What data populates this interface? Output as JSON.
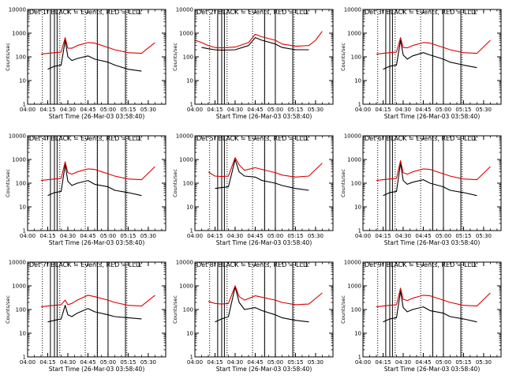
{
  "colors": {
    "events": "#000000",
    "lld": "#dd0000",
    "background": "#ffffff",
    "axis": "#000000"
  },
  "chart_data": [
    {
      "type": "line",
      "title": "Det 1f BLACK = Events, RED = LLD",
      "xlabel": "Start Time (26-Mar-03 03:58:40)",
      "ylabel": "Counts/sec",
      "x_tick_labels": [
        "04:00",
        "04:15",
        "04:30",
        "04:45",
        "05:00",
        "05:15",
        "05:30"
      ],
      "y_tick_labels": [
        "1",
        "10",
        "100",
        "1000",
        "10000"
      ],
      "ylim": [
        1,
        10000
      ],
      "yscale": "log",
      "corner_mark": "L",
      "x": [
        "04:10",
        "04:15",
        "04:20",
        "04:25",
        "04:28",
        "04:30",
        "04:33",
        "04:37",
        "04:45",
        "04:50",
        "05:00",
        "05:05",
        "05:15",
        "05:25",
        "05:35"
      ],
      "series": [
        {
          "name": "Events",
          "color": "#000000",
          "values": [
            null,
            30,
            40,
            45,
            500,
            100,
            70,
            85,
            110,
            80,
            60,
            45,
            30,
            25,
            null
          ]
        },
        {
          "name": "LLD",
          "color": "#dd0000",
          "values": [
            130,
            140,
            150,
            160,
            650,
            230,
            230,
            300,
            400,
            380,
            250,
            200,
            150,
            140,
            400
          ]
        }
      ],
      "vertical_lines_solid": [
        "04:17",
        "04:20",
        "04:22",
        "04:52",
        "05:00",
        "05:13"
      ],
      "vertical_lines_dotted": [
        "04:11",
        "04:24",
        "04:43",
        "04:52",
        "05:14"
      ]
    },
    {
      "type": "line",
      "title": "Det 2f BLACK = Events, RED = LLD",
      "xlabel": "Start Time (26-Mar-03 03:58:40)",
      "ylabel": "Counts/sec",
      "x_tick_labels": [
        "04:00",
        "04:15",
        "04:30",
        "04:45",
        "05:00",
        "05:15",
        "05:30"
      ],
      "y_tick_labels": [
        "1",
        "10",
        "100",
        "1000",
        "10000"
      ],
      "ylim": [
        1,
        10000
      ],
      "yscale": "log",
      "corner_mark": "L",
      "x": [
        "04:00",
        "04:05",
        "04:10",
        "04:15",
        "04:20",
        "04:30",
        "04:40",
        "04:45",
        "04:50",
        "05:00",
        "05:05",
        "05:15",
        "05:25",
        "05:30",
        "05:35"
      ],
      "series": [
        {
          "name": "Events",
          "color": "#000000",
          "values": [
            null,
            250,
            220,
            200,
            190,
            200,
            300,
            650,
            500,
            350,
            250,
            200,
            200,
            null,
            null
          ]
        },
        {
          "name": "LLD",
          "color": "#dd0000",
          "values": [
            500,
            400,
            300,
            250,
            240,
            260,
            400,
            900,
            700,
            500,
            350,
            280,
            300,
            500,
            1200
          ]
        }
      ],
      "vertical_lines_solid": [
        "04:17",
        "04:20",
        "04:22",
        "04:52",
        "05:00",
        "05:13"
      ],
      "vertical_lines_dotted": [
        "04:11",
        "04:24",
        "04:43",
        "04:52",
        "05:14"
      ]
    },
    {
      "type": "line",
      "title": "Det 3f BLACK = Events, RED = LLD",
      "xlabel": "Start Time (26-Mar-03 03:58:40)",
      "ylabel": "Counts/sec",
      "x_tick_labels": [
        "04:00",
        "04:15",
        "04:30",
        "04:45",
        "05:00",
        "05:15",
        "05:30"
      ],
      "y_tick_labels": [
        "1",
        "10",
        "100",
        "1000",
        "10000"
      ],
      "ylim": [
        1,
        10000
      ],
      "yscale": "log",
      "corner_mark": "L",
      "x": [
        "04:10",
        "04:15",
        "04:20",
        "04:25",
        "04:28",
        "04:30",
        "04:33",
        "04:37",
        "04:45",
        "04:50",
        "05:00",
        "05:05",
        "05:15",
        "05:25",
        "05:35"
      ],
      "series": [
        {
          "name": "Events",
          "color": "#000000",
          "values": [
            null,
            30,
            40,
            45,
            500,
            120,
            80,
            110,
            150,
            120,
            80,
            60,
            45,
            35,
            null
          ]
        },
        {
          "name": "LLD",
          "color": "#dd0000",
          "values": [
            130,
            140,
            150,
            160,
            650,
            250,
            240,
            300,
            400,
            380,
            250,
            200,
            150,
            140,
            500
          ]
        }
      ],
      "vertical_lines_solid": [
        "04:17",
        "04:20",
        "04:22",
        "04:52",
        "05:00",
        "05:13"
      ],
      "vertical_lines_dotted": [
        "04:11",
        "04:24",
        "04:43",
        "04:52",
        "05:14"
      ]
    },
    {
      "type": "line",
      "title": "Det 4f BLACK = Events, RED = LLD",
      "xlabel": "Start Time (26-Mar-03 03:58:40)",
      "ylabel": "Counts/sec",
      "x_tick_labels": [
        "04:00",
        "04:15",
        "04:30",
        "04:45",
        "05:00",
        "05:15",
        "05:30"
      ],
      "y_tick_labels": [
        "1",
        "10",
        "100",
        "1000",
        "10000"
      ],
      "ylim": [
        1,
        10000
      ],
      "yscale": "log",
      "corner_mark": "L",
      "x": [
        "04:10",
        "04:15",
        "04:20",
        "04:25",
        "04:28",
        "04:30",
        "04:33",
        "04:37",
        "04:45",
        "04:50",
        "05:00",
        "05:05",
        "05:15",
        "05:25",
        "05:35"
      ],
      "series": [
        {
          "name": "Events",
          "color": "#000000",
          "values": [
            null,
            30,
            40,
            45,
            600,
            120,
            80,
            100,
            130,
            90,
            70,
            50,
            40,
            30,
            null
          ]
        },
        {
          "name": "LLD",
          "color": "#dd0000",
          "values": [
            130,
            140,
            150,
            160,
            800,
            280,
            240,
            300,
            400,
            380,
            250,
            200,
            150,
            140,
            500
          ]
        }
      ],
      "vertical_lines_solid": [
        "04:17",
        "04:20",
        "04:22",
        "04:52",
        "05:00",
        "05:13"
      ],
      "vertical_lines_dotted": [
        "04:11",
        "04:24",
        "04:43",
        "04:52",
        "05:14"
      ]
    },
    {
      "type": "line",
      "title": "Det 5f BLACK = Events, RED = LLD",
      "xlabel": "Start Time (26-Mar-03 03:58:40)",
      "ylabel": "Counts/sec",
      "x_tick_labels": [
        "04:00",
        "04:15",
        "04:30",
        "04:45",
        "05:00",
        "05:15",
        "05:30"
      ],
      "y_tick_labels": [
        "1",
        "10",
        "100",
        "1000",
        "10000"
      ],
      "ylim": [
        1,
        10000
      ],
      "yscale": "log",
      "corner_mark": "L",
      "x": [
        "04:10",
        "04:15",
        "04:20",
        "04:25",
        "04:30",
        "04:33",
        "04:37",
        "04:45",
        "04:50",
        "05:00",
        "05:05",
        "05:15",
        "05:25",
        "05:35"
      ],
      "series": [
        {
          "name": "Events",
          "color": "#000000",
          "values": [
            null,
            60,
            65,
            70,
            1000,
            300,
            200,
            180,
            130,
            100,
            80,
            60,
            50,
            null
          ]
        },
        {
          "name": "LLD",
          "color": "#dd0000",
          "values": [
            300,
            200,
            190,
            200,
            1200,
            600,
            350,
            450,
            380,
            280,
            220,
            180,
            200,
            700
          ]
        }
      ],
      "vertical_lines_solid": [
        "04:17",
        "04:20",
        "04:22",
        "04:52",
        "05:00",
        "05:13"
      ],
      "vertical_lines_dotted": [
        "04:11",
        "04:24",
        "04:43",
        "04:52",
        "05:14"
      ]
    },
    {
      "type": "line",
      "title": "Det 6f BLACK = Events, RED = LLD",
      "xlabel": "Start Time (26-Mar-03 03:58:40)",
      "ylabel": "Counts/sec",
      "x_tick_labels": [
        "04:00",
        "04:15",
        "04:30",
        "04:45",
        "05:00",
        "05:15",
        "05:30"
      ],
      "y_tick_labels": [
        "1",
        "10",
        "100",
        "1000",
        "10000"
      ],
      "ylim": [
        1,
        10000
      ],
      "yscale": "log",
      "corner_mark": "L",
      "x": [
        "04:10",
        "04:15",
        "04:20",
        "04:25",
        "04:28",
        "04:30",
        "04:33",
        "04:37",
        "04:45",
        "04:50",
        "05:00",
        "05:05",
        "05:15",
        "05:25",
        "05:35"
      ],
      "series": [
        {
          "name": "Events",
          "color": "#000000",
          "values": [
            null,
            30,
            40,
            45,
            700,
            130,
            90,
            110,
            140,
            100,
            70,
            50,
            40,
            30,
            null
          ]
        },
        {
          "name": "LLD",
          "color": "#dd0000",
          "values": [
            130,
            140,
            150,
            160,
            900,
            280,
            240,
            300,
            400,
            380,
            250,
            200,
            150,
            140,
            500
          ]
        }
      ],
      "vertical_lines_solid": [
        "04:17",
        "04:20",
        "04:22",
        "04:52",
        "05:00",
        "05:13"
      ],
      "vertical_lines_dotted": [
        "04:11",
        "04:24",
        "04:43",
        "04:52",
        "05:14"
      ]
    },
    {
      "type": "line",
      "title": "Det 7f BLACK = Events, RED = LLD",
      "xlabel": "Start Time (26-Mar-03 03:58:40)",
      "ylabel": "Counts/sec",
      "x_tick_labels": [
        "04:00",
        "04:15",
        "04:30",
        "04:45",
        "05:00",
        "05:15",
        "05:30"
      ],
      "y_tick_labels": [
        "1",
        "10",
        "100",
        "1000",
        "10000"
      ],
      "ylim": [
        1,
        10000
      ],
      "yscale": "log",
      "corner_mark": "L",
      "x": [
        "04:10",
        "04:15",
        "04:20",
        "04:25",
        "04:28",
        "04:30",
        "04:33",
        "04:37",
        "04:45",
        "04:50",
        "05:00",
        "05:05",
        "05:15",
        "05:25",
        "05:35"
      ],
      "series": [
        {
          "name": "Events",
          "color": "#000000",
          "values": [
            null,
            30,
            35,
            40,
            150,
            60,
            50,
            70,
            110,
            80,
            60,
            50,
            45,
            40,
            null
          ]
        },
        {
          "name": "LLD",
          "color": "#dd0000",
          "values": [
            130,
            140,
            150,
            160,
            250,
            160,
            180,
            250,
            400,
            350,
            250,
            200,
            150,
            140,
            400
          ]
        }
      ],
      "vertical_lines_solid": [
        "04:17",
        "04:20",
        "04:22",
        "04:52",
        "05:00",
        "05:13"
      ],
      "vertical_lines_dotted": [
        "04:11",
        "04:24",
        "04:43",
        "04:52",
        "05:14"
      ]
    },
    {
      "type": "line",
      "title": "Det 8f BLACK = Events, RED = LLD",
      "xlabel": "Start Time (26-Mar-03 03:58:40)",
      "ylabel": "Counts/sec",
      "x_tick_labels": [
        "04:00",
        "04:15",
        "04:30",
        "04:45",
        "05:00",
        "05:15",
        "05:30"
      ],
      "y_tick_labels": [
        "1",
        "10",
        "100",
        "1000",
        "10000"
      ],
      "ylim": [
        1,
        10000
      ],
      "yscale": "log",
      "corner_mark": "L",
      "x": [
        "04:10",
        "04:15",
        "04:20",
        "04:25",
        "04:30",
        "04:33",
        "04:37",
        "04:45",
        "04:50",
        "05:00",
        "05:05",
        "05:15",
        "05:25",
        "05:35"
      ],
      "series": [
        {
          "name": "Events",
          "color": "#000000",
          "values": [
            null,
            30,
            40,
            50,
            900,
            200,
            100,
            120,
            90,
            60,
            45,
            35,
            30,
            null
          ]
        },
        {
          "name": "LLD",
          "color": "#dd0000",
          "values": [
            220,
            180,
            170,
            180,
            1000,
            350,
            250,
            380,
            330,
            250,
            200,
            160,
            170,
            500
          ]
        }
      ],
      "vertical_lines_solid": [
        "04:17",
        "04:20",
        "04:22",
        "04:52",
        "05:00",
        "05:13"
      ],
      "vertical_lines_dotted": [
        "04:11",
        "04:24",
        "04:43",
        "04:52",
        "05:14"
      ]
    },
    {
      "type": "line",
      "title": "Det 9f BLACK = Events, RED = LLD",
      "xlabel": "Start Time (26-Mar-03 03:58:40)",
      "ylabel": "Counts/sec",
      "x_tick_labels": [
        "04:00",
        "04:15",
        "04:30",
        "04:45",
        "05:00",
        "05:15",
        "05:30"
      ],
      "y_tick_labels": [
        "1",
        "10",
        "100",
        "1000",
        "10000"
      ],
      "ylim": [
        1,
        10000
      ],
      "yscale": "log",
      "corner_mark": "L",
      "x": [
        "04:10",
        "04:15",
        "04:20",
        "04:25",
        "04:28",
        "04:30",
        "04:33",
        "04:37",
        "04:45",
        "04:50",
        "05:00",
        "05:05",
        "05:15",
        "05:25",
        "05:35"
      ],
      "series": [
        {
          "name": "Events",
          "color": "#000000",
          "values": [
            null,
            30,
            40,
            45,
            600,
            120,
            80,
            100,
            130,
            90,
            70,
            50,
            40,
            30,
            null
          ]
        },
        {
          "name": "LLD",
          "color": "#dd0000",
          "values": [
            130,
            140,
            150,
            160,
            800,
            270,
            240,
            300,
            400,
            380,
            250,
            200,
            150,
            140,
            500
          ]
        }
      ],
      "vertical_lines_solid": [
        "04:17",
        "04:20",
        "04:22",
        "04:52",
        "05:00",
        "05:13"
      ],
      "vertical_lines_dotted": [
        "04:11",
        "04:24",
        "04:43",
        "04:52",
        "05:14"
      ]
    }
  ]
}
